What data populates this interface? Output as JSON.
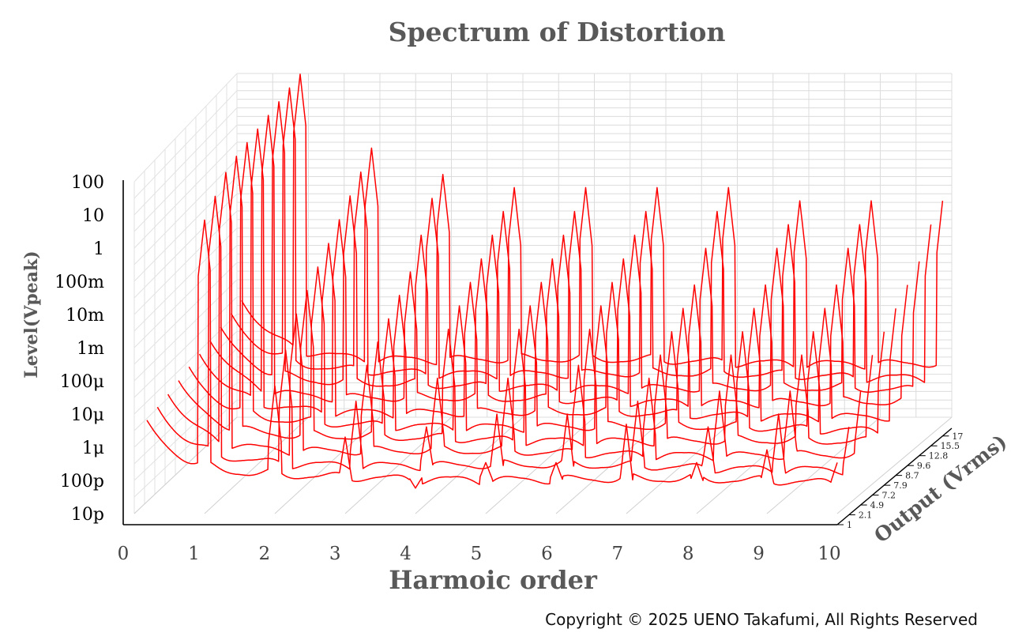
{
  "chart_data": {
    "type": "line",
    "title": "Spectrum of Distortion",
    "xlabel": "Harmoic order",
    "ylabel": "Level(Vpeak)",
    "zlabel": "Output (Vrms)",
    "x_ticks": [
      "0",
      "1",
      "2",
      "3",
      "4",
      "5",
      "6",
      "7",
      "8",
      "9",
      "10"
    ],
    "y_ticks": [
      "10p",
      "100p",
      "1μ",
      "10μ",
      "100μ",
      "1m",
      "10m",
      "100m",
      "1",
      "10",
      "100"
    ],
    "z_ticks": [
      "1",
      "2.1",
      "4.9",
      "7.2",
      "7.9",
      "8.7",
      "9.6",
      "12.8",
      "15.5",
      "17"
    ],
    "xlim": [
      0,
      10
    ],
    "grid": true,
    "series_color": "#ff0000",
    "harmonics": [
      1,
      2,
      3,
      4,
      5,
      6,
      7,
      8,
      9,
      10
    ],
    "series": [
      {
        "name": "1",
        "values": [
          0.5,
          -6,
          -8,
          -10,
          -9,
          -9,
          -7.5,
          -9,
          -8.5,
          -9
        ]
      },
      {
        "name": "2.1",
        "values": [
          1,
          -5,
          -7,
          -8,
          -7.5,
          -7.5,
          -7,
          -8,
          -7.5,
          -8
        ]
      },
      {
        "name": "4.9",
        "values": [
          1.5,
          -4,
          -6,
          -6.5,
          -6.5,
          -6,
          -6.5,
          -7,
          -7,
          -7
        ]
      },
      {
        "name": "7.2",
        "values": [
          1.7,
          -3.5,
          -5.5,
          -5,
          -5,
          -5,
          -6,
          -6,
          -6,
          -6
        ]
      },
      {
        "name": "7.9",
        "values": [
          1.8,
          -3,
          -5,
          -4.5,
          -4.5,
          -4.5,
          -5.5,
          -5.5,
          -5.5,
          -5.5
        ]
      },
      {
        "name": "8.7",
        "values": [
          1.9,
          -2.5,
          -4.5,
          -4,
          -4,
          -4,
          -5,
          -5,
          -5,
          -5
        ]
      },
      {
        "name": "9.6",
        "values": [
          2,
          -2,
          -4,
          -3.5,
          -3.5,
          -3.5,
          -4.5,
          -4.5,
          -4.5,
          -4.5
        ]
      },
      {
        "name": "12.8",
        "values": [
          2.1,
          -1.5,
          -3,
          -3,
          -3,
          -3,
          -3.5,
          -3.5,
          -3.5,
          -4
        ]
      },
      {
        "name": "15.5",
        "values": [
          2.2,
          -1,
          -2,
          -2.5,
          -2.5,
          -2.5,
          -2.5,
          -3,
          -3,
          -3
        ]
      },
      {
        "name": "17",
        "values": [
          2.3,
          -0.5,
          -1.5,
          -2,
          -2,
          -2,
          -2,
          -2.5,
          -2.5,
          -2.5
        ]
      }
    ]
  },
  "copyright": "Copyright © 2025 UENO Takafumi, All Rights Reserved"
}
